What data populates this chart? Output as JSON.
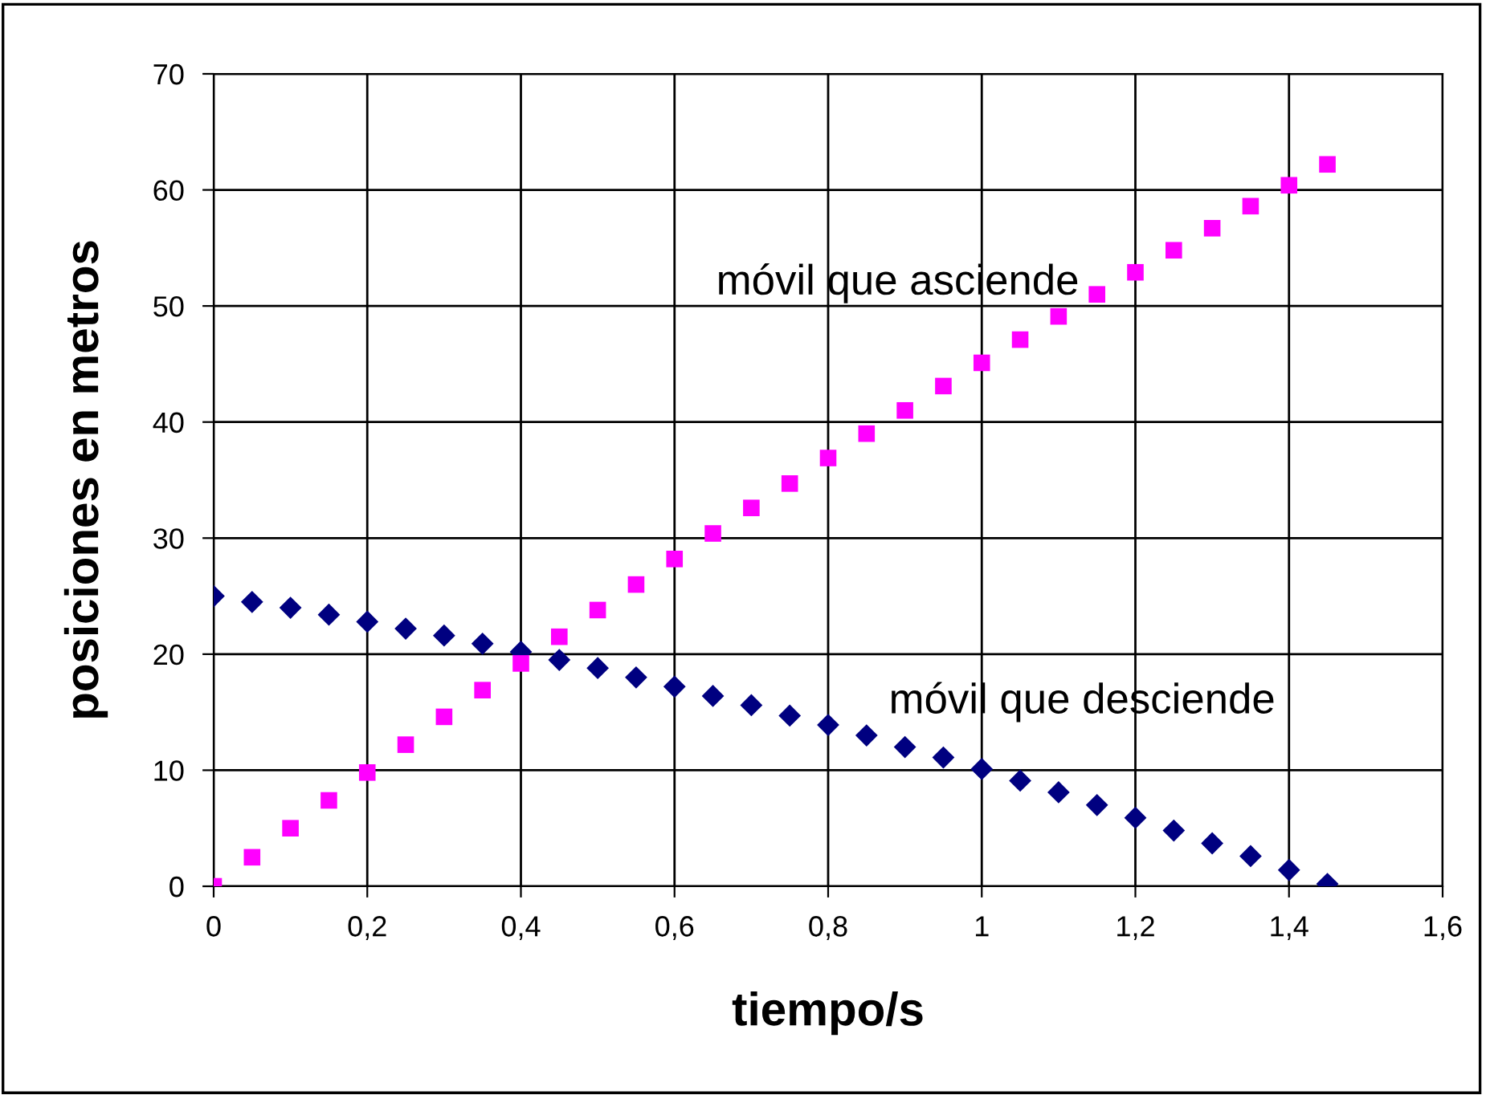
{
  "chart_data": {
    "type": "scatter",
    "xlabel": "tiempo/s",
    "ylabel": "posiciones en metros",
    "x": [
      0,
      0.05,
      0.1,
      0.15,
      0.2,
      0.25,
      0.3,
      0.35,
      0.4,
      0.45,
      0.5,
      0.55,
      0.6,
      0.65,
      0.7,
      0.75,
      0.8,
      0.85,
      0.9,
      0.95,
      1,
      1.05,
      1.1,
      1.15,
      1.2,
      1.25,
      1.3,
      1.35,
      1.4,
      1.45
    ],
    "series": [
      {
        "name": "móvil que desciende",
        "color": "#000080",
        "marker": "diamond",
        "values": [
          25,
          24.5,
          24.0,
          23.4,
          22.8,
          22.2,
          21.6,
          20.9,
          20.2,
          19.5,
          18.8,
          18.0,
          17.2,
          16.4,
          15.6,
          14.7,
          13.9,
          13.0,
          12.0,
          11.1,
          10.1,
          9.1,
          8.1,
          7.0,
          5.9,
          4.8,
          3.7,
          2.6,
          1.4,
          0.2
        ]
      },
      {
        "name": "móvil que asciende",
        "color": "#ff00ff",
        "marker": "square",
        "values": [
          0,
          2.5,
          5.0,
          7.4,
          9.8,
          12.2,
          14.6,
          16.9,
          19.2,
          21.5,
          23.8,
          26.0,
          28.2,
          30.4,
          32.6,
          34.7,
          36.9,
          39.0,
          41.0,
          43.1,
          45.1,
          47.1,
          49.1,
          51.0,
          52.9,
          54.8,
          56.7,
          58.6,
          60.4,
          62.2
        ]
      }
    ],
    "xlim": [
      0,
      1.6
    ],
    "xticks": [
      0,
      {
        "value": 0.2,
        "label": "0,2"
      },
      {
        "value": 0.4,
        "label": "0,4"
      },
      {
        "value": 0.6,
        "label": "0,6"
      },
      {
        "value": 0.8,
        "label": "0,8"
      },
      1,
      {
        "value": 1.2,
        "label": "1,2"
      },
      {
        "value": 1.4,
        "label": "1,4"
      },
      {
        "value": 1.6,
        "label": "1,6"
      }
    ],
    "ylim": [
      0,
      70
    ],
    "yticks": [
      0,
      10,
      20,
      30,
      40,
      50,
      60,
      70
    ],
    "grid": true,
    "legend": false
  }
}
